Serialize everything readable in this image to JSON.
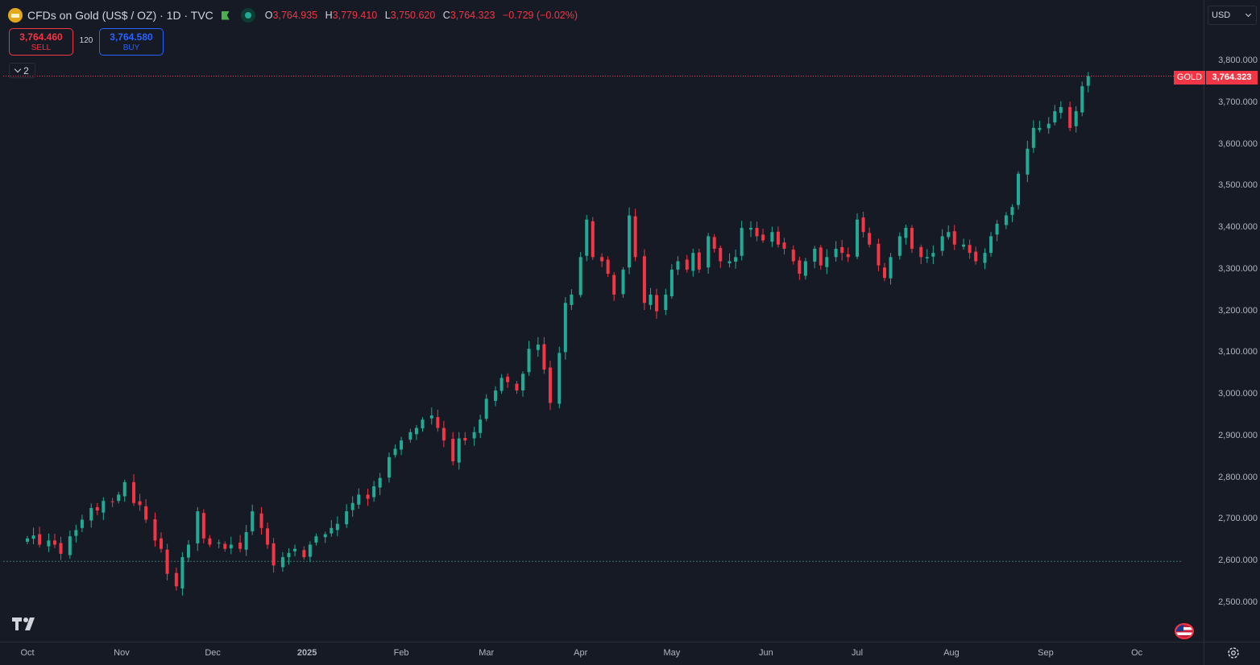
{
  "header": {
    "symbol_title": "CFDs on Gold (US$ / OZ) · 1D · TVC",
    "ohlc": {
      "o_label": "O",
      "o_value": "3,764.935",
      "h_label": "H",
      "h_value": "3,779.410",
      "l_label": "L",
      "l_value": "3,750.620",
      "c_label": "C",
      "c_value": "3,764.323",
      "change": "−0.729 (−0.02%)"
    }
  },
  "trade": {
    "sell_price": "3,764.460",
    "sell_label": "SELL",
    "spread": "120",
    "buy_price": "3,764.580",
    "buy_label": "BUY"
  },
  "indicator_toggle": {
    "count": "2"
  },
  "currency": "USD",
  "price_tag": {
    "symbol": "GOLD",
    "last": "3,764.323"
  },
  "colors": {
    "up": "#22ab94",
    "down": "#f23645",
    "background": "#161a25",
    "axis_text": "#b2b5be"
  },
  "chart_data": {
    "type": "candlestick",
    "title": "CFDs on Gold (US$ / OZ) · 1D · TVC",
    "ylim": [
      2450,
      3830
    ],
    "y_ticks": [
      2500,
      2600,
      2700,
      2800,
      2900,
      3000,
      3100,
      3200,
      3300,
      3400,
      3500,
      3600,
      3700,
      3800
    ],
    "y_tick_labels": [
      "2,500.000",
      "2,600.000",
      "2,700.000",
      "2,800.000",
      "2,900.000",
      "3,000.000",
      "3,100.000",
      "3,200.000",
      "3,300.000",
      "3,400.000",
      "3,500.000",
      "3,600.000",
      "3,700.000",
      "3,800.000"
    ],
    "x_labels": [
      "Oct",
      "Nov",
      "Dec",
      "2025",
      "Feb",
      "Mar",
      "Apr",
      "May",
      "Jun",
      "Jul",
      "Aug",
      "Sep",
      "Oc"
    ],
    "x_label_days": [
      0,
      31,
      61,
      92,
      123,
      151,
      182,
      212,
      243,
      273,
      304,
      335,
      365
    ],
    "start_date": "2024-09-30",
    "last_price": 3764.323,
    "reference_line": 2600,
    "closes": [
      [
        0,
        2655
      ],
      [
        2,
        2662
      ],
      [
        4,
        2640
      ],
      [
        7,
        2650
      ],
      [
        9,
        2640
      ],
      [
        11,
        2618
      ],
      [
        14,
        2660
      ],
      [
        16,
        2675
      ],
      [
        18,
        2700
      ],
      [
        21,
        2728
      ],
      [
        23,
        2722
      ],
      [
        25,
        2745
      ],
      [
        28,
        2742
      ],
      [
        30,
        2760
      ],
      [
        32,
        2790
      ],
      [
        35,
        2740
      ],
      [
        37,
        2735
      ],
      [
        39,
        2700
      ],
      [
        42,
        2650
      ],
      [
        44,
        2630
      ],
      [
        46,
        2570
      ],
      [
        49,
        2540
      ],
      [
        51,
        2610
      ],
      [
        53,
        2640
      ],
      [
        56,
        2720
      ],
      [
        58,
        2655
      ],
      [
        60,
        2640
      ],
      [
        63,
        2645
      ],
      [
        65,
        2630
      ],
      [
        67,
        2640
      ],
      [
        70,
        2630
      ],
      [
        72,
        2670
      ],
      [
        74,
        2720
      ],
      [
        77,
        2680
      ],
      [
        79,
        2640
      ],
      [
        81,
        2590
      ],
      [
        84,
        2610
      ],
      [
        86,
        2620
      ],
      [
        88,
        2630
      ],
      [
        91,
        2610
      ],
      [
        93,
        2640
      ],
      [
        95,
        2660
      ],
      [
        98,
        2665
      ],
      [
        100,
        2680
      ],
      [
        102,
        2690
      ],
      [
        105,
        2720
      ],
      [
        107,
        2740
      ],
      [
        109,
        2760
      ],
      [
        112,
        2750
      ],
      [
        114,
        2780
      ],
      [
        116,
        2800
      ],
      [
        119,
        2850
      ],
      [
        121,
        2870
      ],
      [
        123,
        2890
      ],
      [
        126,
        2910
      ],
      [
        128,
        2920
      ],
      [
        130,
        2940
      ],
      [
        133,
        2950
      ],
      [
        135,
        2920
      ],
      [
        137,
        2890
      ],
      [
        140,
        2840
      ],
      [
        142,
        2895
      ],
      [
        144,
        2890
      ],
      [
        147,
        2910
      ],
      [
        149,
        2940
      ],
      [
        151,
        2990
      ],
      [
        154,
        3010
      ],
      [
        156,
        3040
      ],
      [
        158,
        3030
      ],
      [
        161,
        3010
      ],
      [
        163,
        3050
      ],
      [
        165,
        3110
      ],
      [
        168,
        3120
      ],
      [
        170,
        3060
      ],
      [
        172,
        2980
      ],
      [
        175,
        3100
      ],
      [
        177,
        3220
      ],
      [
        179,
        3240
      ],
      [
        182,
        3330
      ],
      [
        184,
        3420
      ],
      [
        186,
        3330
      ],
      [
        189,
        3320
      ],
      [
        191,
        3290
      ],
      [
        193,
        3240
      ],
      [
        196,
        3300
      ],
      [
        198,
        3430
      ],
      [
        200,
        3330
      ],
      [
        203,
        3220
      ],
      [
        205,
        3240
      ],
      [
        207,
        3200
      ],
      [
        210,
        3240
      ],
      [
        212,
        3300
      ],
      [
        214,
        3320
      ],
      [
        217,
        3300
      ],
      [
        219,
        3340
      ],
      [
        221,
        3300
      ],
      [
        224,
        3380
      ],
      [
        226,
        3350
      ],
      [
        228,
        3320
      ],
      [
        231,
        3320
      ],
      [
        233,
        3330
      ],
      [
        235,
        3400
      ],
      [
        238,
        3400
      ],
      [
        240,
        3380
      ],
      [
        242,
        3370
      ],
      [
        245,
        3390
      ],
      [
        247,
        3360
      ],
      [
        249,
        3350
      ],
      [
        252,
        3320
      ],
      [
        254,
        3290
      ],
      [
        256,
        3320
      ],
      [
        259,
        3350
      ],
      [
        261,
        3310
      ],
      [
        263,
        3330
      ],
      [
        266,
        3350
      ],
      [
        268,
        3340
      ],
      [
        270,
        3330
      ],
      [
        273,
        3420
      ],
      [
        275,
        3390
      ],
      [
        277,
        3360
      ],
      [
        280,
        3310
      ],
      [
        282,
        3280
      ],
      [
        284,
        3330
      ],
      [
        287,
        3380
      ],
      [
        289,
        3400
      ],
      [
        291,
        3350
      ],
      [
        294,
        3330
      ],
      [
        296,
        3330
      ],
      [
        298,
        3340
      ],
      [
        301,
        3380
      ],
      [
        303,
        3390
      ],
      [
        305,
        3360
      ],
      [
        308,
        3360
      ],
      [
        310,
        3340
      ],
      [
        312,
        3320
      ],
      [
        315,
        3340
      ],
      [
        317,
        3380
      ],
      [
        319,
        3410
      ],
      [
        322,
        3430
      ],
      [
        324,
        3450
      ],
      [
        326,
        3530
      ],
      [
        329,
        3590
      ],
      [
        331,
        3640
      ],
      [
        333,
        3640
      ],
      [
        336,
        3650
      ],
      [
        338,
        3680
      ],
      [
        340,
        3690
      ],
      [
        343,
        3640
      ],
      [
        345,
        3680
      ],
      [
        347,
        3740
      ],
      [
        349,
        3764
      ]
    ]
  }
}
